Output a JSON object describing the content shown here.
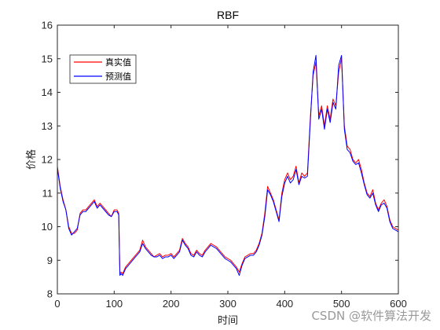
{
  "chart_data": {
    "type": "line",
    "title": "RBF",
    "xlabel": "时间",
    "ylabel": "价格",
    "xlim": [
      0,
      600
    ],
    "ylim": [
      8,
      16
    ],
    "xticks": [
      0,
      100,
      200,
      300,
      400,
      500,
      600
    ],
    "yticks": [
      8,
      9,
      10,
      11,
      12,
      13,
      14,
      15,
      16
    ],
    "grid": false,
    "legend_position": "top-left",
    "x": [
      0,
      5,
      10,
      15,
      20,
      25,
      30,
      35,
      40,
      45,
      50,
      55,
      60,
      65,
      70,
      75,
      80,
      85,
      90,
      95,
      100,
      105,
      108,
      110,
      112,
      115,
      120,
      125,
      130,
      135,
      140,
      145,
      150,
      155,
      160,
      165,
      170,
      175,
      180,
      185,
      190,
      195,
      200,
      205,
      210,
      215,
      220,
      225,
      230,
      235,
      240,
      245,
      250,
      255,
      260,
      265,
      270,
      275,
      280,
      285,
      290,
      295,
      300,
      305,
      310,
      315,
      320,
      325,
      330,
      335,
      340,
      345,
      350,
      355,
      360,
      365,
      370,
      375,
      380,
      385,
      390,
      395,
      400,
      405,
      410,
      415,
      420,
      425,
      430,
      435,
      440,
      445,
      450,
      455,
      460,
      465,
      470,
      475,
      480,
      485,
      490,
      495,
      500,
      505,
      510,
      515,
      520,
      525,
      530,
      535,
      540,
      545,
      550,
      555,
      560,
      565,
      570,
      575,
      580,
      585,
      590,
      595,
      600
    ],
    "series": [
      {
        "name": "真实值",
        "color": "#ff0000",
        "values": [
          11.8,
          11.2,
          10.8,
          10.5,
          10.0,
          9.8,
          9.8,
          9.9,
          10.4,
          10.5,
          10.5,
          10.6,
          10.7,
          10.8,
          10.6,
          10.7,
          10.6,
          10.5,
          10.4,
          10.3,
          10.5,
          10.5,
          10.4,
          8.6,
          8.65,
          8.6,
          8.8,
          8.9,
          9.0,
          9.1,
          9.2,
          9.3,
          9.6,
          9.4,
          9.3,
          9.2,
          9.1,
          9.15,
          9.2,
          9.1,
          9.15,
          9.15,
          9.2,
          9.1,
          9.2,
          9.3,
          9.65,
          9.5,
          9.4,
          9.2,
          9.15,
          9.3,
          9.2,
          9.15,
          9.3,
          9.4,
          9.5,
          9.45,
          9.4,
          9.3,
          9.2,
          9.1,
          9.05,
          9.0,
          8.9,
          8.8,
          8.65,
          8.9,
          9.1,
          9.15,
          9.2,
          9.2,
          9.3,
          9.5,
          9.8,
          10.4,
          11.2,
          11.0,
          10.8,
          10.5,
          10.2,
          11.0,
          11.4,
          11.6,
          11.4,
          11.5,
          11.8,
          11.3,
          11.6,
          11.5,
          11.6,
          13.2,
          14.5,
          14.9,
          13.3,
          13.6,
          13.0,
          13.6,
          13.2,
          13.8,
          13.6,
          14.6,
          15.0,
          13.0,
          12.4,
          12.3,
          12.0,
          11.9,
          12.0,
          11.7,
          11.3,
          11.0,
          10.9,
          11.1,
          10.7,
          10.5,
          10.7,
          10.8,
          10.6,
          10.2,
          10.0,
          9.95,
          9.9
        ]
      },
      {
        "name": "预测值",
        "color": "#0000ff",
        "values": [
          11.75,
          11.15,
          10.75,
          10.5,
          9.95,
          9.75,
          9.85,
          9.95,
          10.35,
          10.45,
          10.45,
          10.55,
          10.65,
          10.75,
          10.55,
          10.65,
          10.55,
          10.45,
          10.35,
          10.3,
          10.45,
          10.45,
          10.35,
          8.55,
          8.6,
          8.55,
          8.75,
          8.85,
          8.95,
          9.05,
          9.15,
          9.25,
          9.5,
          9.35,
          9.25,
          9.15,
          9.1,
          9.1,
          9.15,
          9.05,
          9.1,
          9.1,
          9.15,
          9.05,
          9.15,
          9.25,
          9.6,
          9.45,
          9.35,
          9.15,
          9.1,
          9.25,
          9.15,
          9.1,
          9.25,
          9.35,
          9.45,
          9.4,
          9.35,
          9.25,
          9.15,
          9.05,
          9.0,
          8.95,
          8.85,
          8.75,
          8.55,
          8.85,
          9.05,
          9.1,
          9.15,
          9.15,
          9.25,
          9.45,
          9.75,
          10.3,
          11.1,
          10.95,
          10.75,
          10.45,
          10.15,
          10.9,
          11.3,
          11.5,
          11.3,
          11.4,
          11.7,
          11.25,
          11.5,
          11.45,
          11.5,
          13.1,
          14.6,
          15.1,
          13.2,
          13.5,
          12.9,
          13.5,
          13.1,
          13.7,
          13.5,
          14.8,
          15.1,
          12.9,
          12.3,
          12.2,
          11.95,
          11.85,
          11.9,
          11.6,
          11.25,
          10.95,
          10.85,
          11.0,
          10.65,
          10.45,
          10.65,
          10.7,
          10.55,
          10.15,
          9.95,
          9.9,
          9.85
        ]
      }
    ]
  },
  "watermark": "CSDN @软件算法开发"
}
